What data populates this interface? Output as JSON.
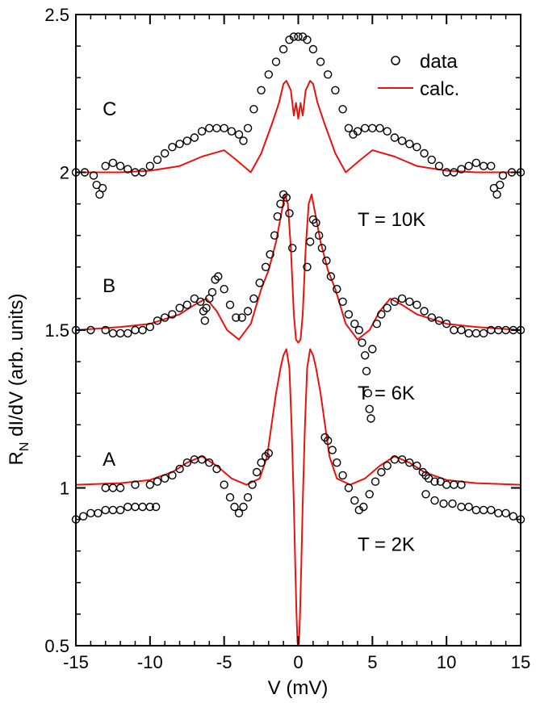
{
  "chart_data": {
    "type": "line",
    "title": "",
    "xlabel": "V (mV)",
    "ylabel_main": "R",
    "ylabel_sub": "N",
    "ylabel_rest": " dI/dV (arb. units)",
    "xlim": [
      -15,
      15
    ],
    "ylim": [
      0.5,
      2.5
    ],
    "xticks": [
      -15,
      -10,
      -5,
      0,
      5,
      10,
      15
    ],
    "xtick_labels": [
      "-15",
      "-10",
      "-5",
      "0",
      "5",
      "10",
      "15"
    ],
    "yticks": [
      0.5,
      1,
      1.5,
      2,
      2.5
    ],
    "ytick_labels": [
      "0.5",
      "1",
      "1.5",
      "2",
      "2.5"
    ],
    "legend": {
      "position": "top-right",
      "entries": [
        {
          "label": "data",
          "marker": "open-circle",
          "color": "#000000"
        },
        {
          "label": "calc.",
          "marker": "line",
          "color": "#e8130f"
        }
      ]
    },
    "annotations": [
      {
        "text": "C",
        "x": -13.2,
        "y": 2.18
      },
      {
        "text": "B",
        "x": -13.2,
        "y": 1.62
      },
      {
        "text": "A",
        "x": -13.2,
        "y": 1.07
      },
      {
        "text": "T = 10K",
        "x": 4.0,
        "y": 1.83
      },
      {
        "text": "T =  6K",
        "x": 4.0,
        "y": 1.28
      },
      {
        "text": "T =  2K",
        "x": 4.0,
        "y": 0.8
      }
    ],
    "series": [
      {
        "name": "calc. C (T = 10K)",
        "style": "line",
        "color": "#e8130f",
        "x": [
          -15,
          -12,
          -10,
          -8,
          -6.5,
          -5,
          -4.2,
          -3.2,
          -2.5,
          -1.8,
          -1.3,
          -1,
          -0.8,
          -0.5,
          -0.3,
          -0.15,
          0,
          0.15,
          0.3,
          0.5,
          0.8,
          1,
          1.3,
          1.8,
          2.5,
          3.2,
          4.2,
          5,
          6.5,
          8,
          10,
          12,
          15
        ],
        "y": [
          2.0,
          2.0,
          2.005,
          2.02,
          2.05,
          2.07,
          2.04,
          2.0,
          2.06,
          2.15,
          2.22,
          2.28,
          2.29,
          2.26,
          2.18,
          2.22,
          2.17,
          2.22,
          2.18,
          2.26,
          2.29,
          2.28,
          2.22,
          2.15,
          2.06,
          2.0,
          2.04,
          2.07,
          2.05,
          2.02,
          2.005,
          2.0,
          2.0
        ]
      },
      {
        "name": "calc. B (T = 6K)",
        "style": "line",
        "color": "#e8130f",
        "x": [
          -15,
          -12,
          -10,
          -8,
          -7,
          -6.2,
          -5.5,
          -4.8,
          -4,
          -3.2,
          -2.5,
          -2,
          -1.5,
          -1.1,
          -0.9,
          -0.7,
          -0.5,
          -0.3,
          -0.15,
          0,
          0.15,
          0.3,
          0.5,
          0.7,
          0.9,
          1.1,
          1.5,
          2,
          2.5,
          3.2,
          4,
          4.8,
          5.5,
          6.2,
          7,
          8,
          10,
          12,
          15
        ],
        "y": [
          1.5,
          1.51,
          1.52,
          1.55,
          1.58,
          1.6,
          1.56,
          1.5,
          1.47,
          1.52,
          1.63,
          1.69,
          1.78,
          1.88,
          1.93,
          1.9,
          1.76,
          1.55,
          1.47,
          1.46,
          1.47,
          1.55,
          1.76,
          1.9,
          1.93,
          1.88,
          1.78,
          1.69,
          1.63,
          1.52,
          1.47,
          1.5,
          1.56,
          1.6,
          1.58,
          1.55,
          1.52,
          1.51,
          1.5
        ]
      },
      {
        "name": "calc. A (T = 2K)",
        "style": "line",
        "color": "#e8130f",
        "x": [
          -15,
          -12,
          -10,
          -8.5,
          -7.5,
          -6.5,
          -5.5,
          -4.5,
          -3.5,
          -2.6,
          -2.1,
          -1.8,
          -1.5,
          -1.2,
          -1.0,
          -0.8,
          -0.6,
          -0.45,
          -0.3,
          -0.2,
          -0.12,
          -0.05,
          0,
          0.05,
          0.12,
          0.2,
          0.3,
          0.45,
          0.6,
          0.8,
          1.0,
          1.2,
          1.5,
          1.8,
          2.1,
          2.6,
          3.5,
          4.5,
          5.5,
          6.5,
          7.5,
          8.5,
          10,
          12,
          15
        ],
        "y": [
          1.01,
          1.015,
          1.025,
          1.05,
          1.08,
          1.1,
          1.07,
          1.03,
          1.01,
          1.03,
          1.1,
          1.2,
          1.3,
          1.38,
          1.42,
          1.44,
          1.38,
          1.2,
          0.95,
          0.75,
          0.6,
          0.51,
          0.5,
          0.51,
          0.6,
          0.75,
          0.95,
          1.2,
          1.38,
          1.44,
          1.42,
          1.38,
          1.3,
          1.2,
          1.1,
          1.03,
          1.01,
          1.03,
          1.07,
          1.1,
          1.08,
          1.05,
          1.025,
          1.015,
          1.01
        ]
      },
      {
        "name": "data C (T = 10K)",
        "style": "markers",
        "color": "#000000",
        "x": [
          -15,
          -14.4,
          -13.8,
          -13.6,
          -13.4,
          -13.2,
          -13.0,
          -12.5,
          -12.0,
          -11.5,
          -11.0,
          -10.5,
          -10.0,
          -9.5,
          -9.0,
          -8.5,
          -8.0,
          -7.5,
          -7.0,
          -6.5,
          -6.0,
          -5.5,
          -5.0,
          -4.5,
          -4.0,
          -3.7,
          -3.4,
          -3.0,
          -2.5,
          -2.0,
          -1.5,
          -1.0,
          -0.6,
          -0.3,
          0.0,
          0.3,
          0.6,
          1.0,
          1.5,
          2.0,
          2.5,
          3.0,
          3.4,
          3.7,
          4.0,
          4.5,
          5.0,
          5.5,
          6.0,
          6.5,
          7.0,
          7.5,
          8.0,
          8.5,
          9.0,
          9.5,
          10.0,
          10.5,
          11.0,
          11.5,
          12.0,
          12.5,
          13.0,
          13.2,
          13.4,
          13.6,
          13.8,
          14.4,
          15
        ],
        "y": [
          2.0,
          2.0,
          1.99,
          1.96,
          1.93,
          1.95,
          2.02,
          2.03,
          2.02,
          2.01,
          2.0,
          2.0,
          2.02,
          2.04,
          2.06,
          2.08,
          2.09,
          2.1,
          2.11,
          2.13,
          2.14,
          2.14,
          2.14,
          2.13,
          2.12,
          2.1,
          2.14,
          2.2,
          2.26,
          2.31,
          2.35,
          2.39,
          2.42,
          2.43,
          2.43,
          2.43,
          2.42,
          2.39,
          2.35,
          2.31,
          2.26,
          2.2,
          2.14,
          2.12,
          2.13,
          2.14,
          2.14,
          2.14,
          2.13,
          2.11,
          2.1,
          2.09,
          2.08,
          2.06,
          2.04,
          2.02,
          2.0,
          2.0,
          2.01,
          2.02,
          2.03,
          2.02,
          2.02,
          1.95,
          1.93,
          1.96,
          1.99,
          2.0,
          2.0
        ]
      },
      {
        "name": "data B (T = 6K)",
        "style": "markers",
        "color": "#000000",
        "x": [
          -15,
          -14,
          -13,
          -12.5,
          -12,
          -11.5,
          -11,
          -10.5,
          -10,
          -9.5,
          -9,
          -8.5,
          -8,
          -7.5,
          -7,
          -6.6,
          -6.4,
          -6.3,
          -6.2,
          -6.0,
          -5.8,
          -5.6,
          -5.4,
          -5.0,
          -4.6,
          -4.2,
          -3.8,
          -3.4,
          -3.0,
          -2.6,
          -2.2,
          -1.9,
          -1.6,
          -1.4,
          -1.2,
          -1.0,
          -0.8,
          -0.6,
          -0.4,
          0.6,
          0.8,
          1.0,
          1.2,
          1.4,
          1.6,
          1.9,
          2.2,
          2.6,
          3.0,
          3.4,
          3.8,
          4.1,
          4.3,
          4.5,
          4.6,
          4.7,
          4.8,
          4.9,
          5.0,
          5.3,
          5.6,
          6.0,
          6.5,
          7.0,
          7.5,
          8.0,
          8.5,
          9.0,
          9.5,
          10.0,
          10.5,
          11.0,
          11.5,
          12.0,
          12.5,
          13.0,
          13.5,
          14.0,
          14.5,
          15
        ],
        "y": [
          1.5,
          1.5,
          1.5,
          1.49,
          1.49,
          1.49,
          1.5,
          1.5,
          1.51,
          1.53,
          1.54,
          1.55,
          1.57,
          1.58,
          1.6,
          1.59,
          1.56,
          1.53,
          1.57,
          1.6,
          1.62,
          1.66,
          1.67,
          1.63,
          1.58,
          1.54,
          1.54,
          1.56,
          1.6,
          1.65,
          1.7,
          1.74,
          1.8,
          1.86,
          1.9,
          1.93,
          1.92,
          1.87,
          1.76,
          1.7,
          1.78,
          1.85,
          1.84,
          1.8,
          1.76,
          1.72,
          1.67,
          1.63,
          1.59,
          1.55,
          1.52,
          1.5,
          1.46,
          1.42,
          1.37,
          1.3,
          1.25,
          1.22,
          1.44,
          1.52,
          1.55,
          1.57,
          1.59,
          1.6,
          1.59,
          1.58,
          1.56,
          1.54,
          1.53,
          1.52,
          1.5,
          1.5,
          1.49,
          1.49,
          1.49,
          1.5,
          1.5,
          1.5,
          1.5,
          1.5
        ]
      },
      {
        "name": "data A (T = 2K)",
        "style": "markers",
        "color": "#000000",
        "x": [
          -15,
          -14.5,
          -14,
          -13.5,
          -13,
          -12.5,
          -12,
          -11.5,
          -11,
          -10.5,
          -10,
          -9.6,
          -13.0,
          -12.5,
          -12,
          -11,
          -10,
          -9.5,
          -9,
          -8.5,
          -8,
          -7.5,
          -7,
          -6.5,
          -6,
          -5.5,
          -5,
          -4.6,
          -4.3,
          -4.0,
          -3.7,
          -3.4,
          -3.1,
          -2.8,
          -2.5,
          -2.2,
          -2.0,
          1.8,
          2.0,
          2.3,
          2.6,
          3.0,
          3.4,
          3.8,
          4.1,
          4.4,
          4.8,
          5.2,
          5.6,
          6.0,
          6.5,
          7.0,
          7.5,
          8.0,
          8.4,
          8.6,
          8.8,
          9.2,
          9.6,
          10.0,
          10.5,
          11.0,
          8.6,
          9.2,
          9.8,
          10.4,
          11,
          11.5,
          12,
          12.5,
          13,
          13.5,
          14,
          14.5,
          15
        ],
        "y": [
          0.9,
          0.91,
          0.92,
          0.92,
          0.93,
          0.93,
          0.93,
          0.94,
          0.94,
          0.94,
          0.94,
          0.94,
          1.0,
          1.0,
          1.0,
          1.01,
          1.01,
          1.02,
          1.03,
          1.04,
          1.06,
          1.08,
          1.09,
          1.09,
          1.08,
          1.06,
          1.01,
          0.97,
          0.94,
          0.92,
          0.94,
          0.97,
          1.01,
          1.05,
          1.08,
          1.1,
          1.11,
          1.16,
          1.15,
          1.12,
          1.08,
          1.04,
          1.0,
          0.96,
          0.93,
          0.94,
          0.98,
          1.02,
          1.05,
          1.07,
          1.09,
          1.09,
          1.08,
          1.07,
          1.05,
          1.04,
          1.03,
          1.02,
          1.02,
          1.01,
          1.01,
          1.01,
          0.98,
          0.96,
          0.95,
          0.95,
          0.94,
          0.94,
          0.93,
          0.93,
          0.93,
          0.92,
          0.92,
          0.91,
          0.9
        ]
      }
    ]
  }
}
